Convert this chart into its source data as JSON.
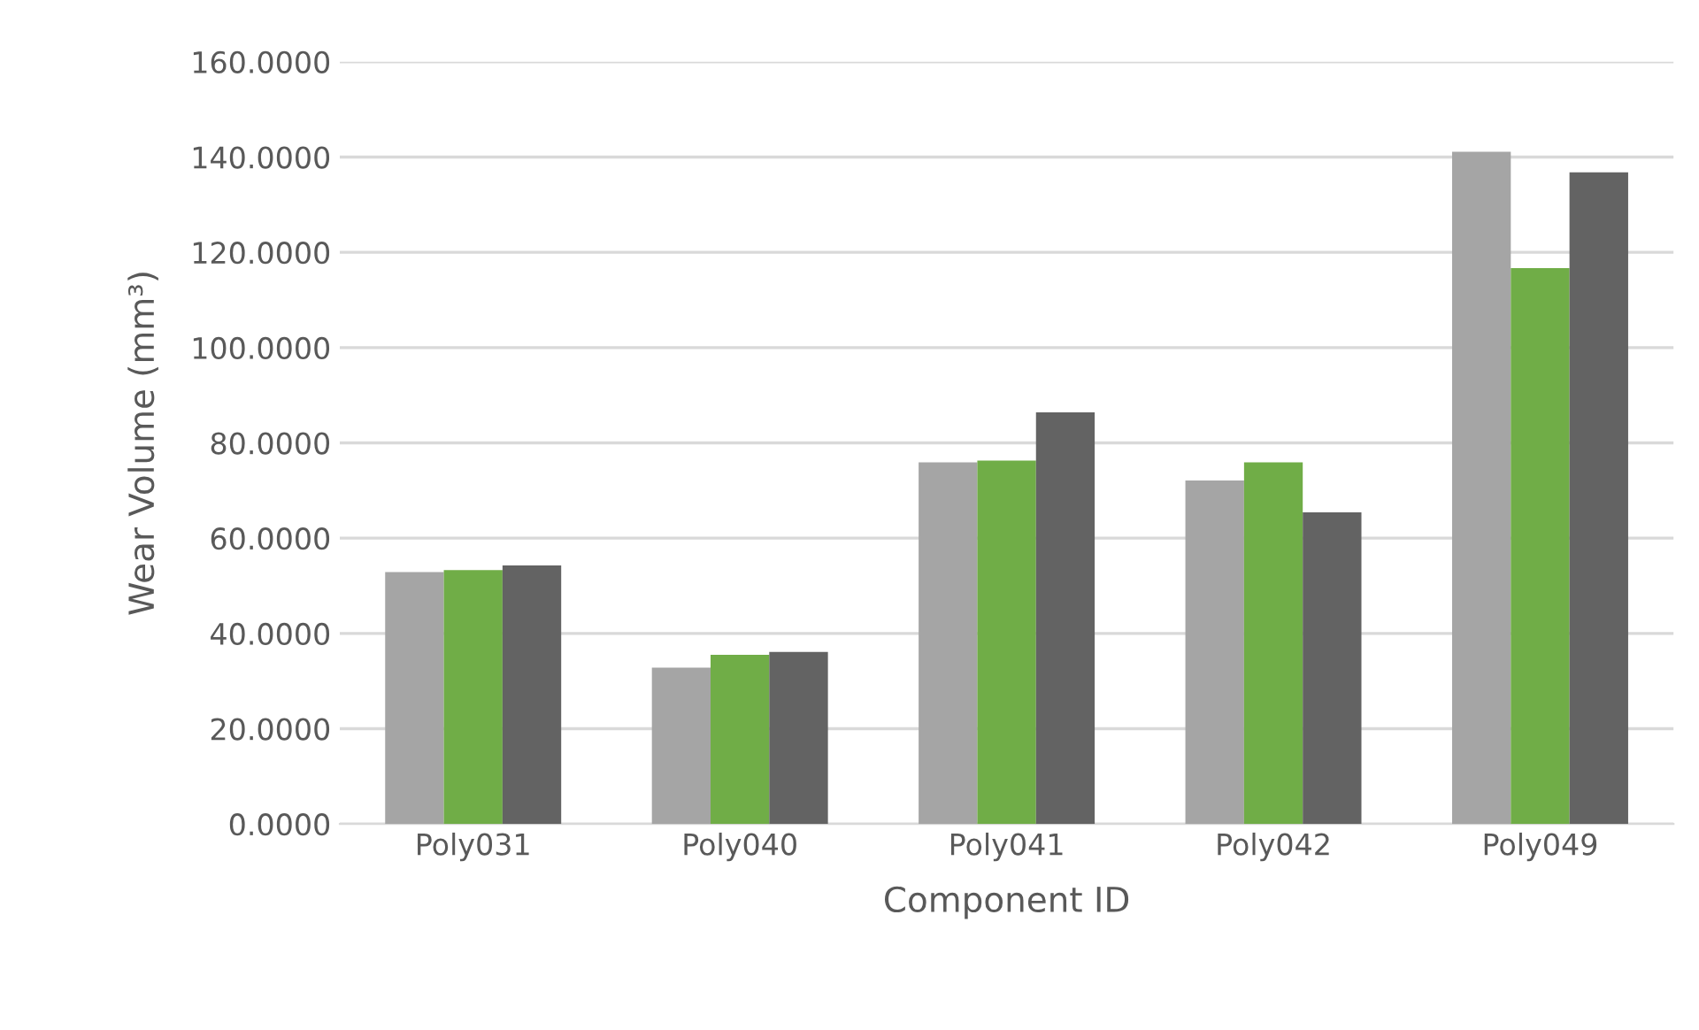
{
  "chart_data": {
    "type": "bar",
    "xlabel": "Component ID",
    "ylabel": "Wear Volume (mm³)",
    "categories": [
      "Poly031",
      "Poly040",
      "Poly041",
      "Poly042",
      "Poly049"
    ],
    "series": [
      {
        "color": "#a5a5a5",
        "values": [
          52.9,
          32.8,
          75.9,
          72.1,
          141.1
        ]
      },
      {
        "color": "#70ad47",
        "values": [
          53.3,
          35.5,
          76.3,
          75.9,
          116.7
        ]
      },
      {
        "color": "#636363",
        "values": [
          54.3,
          36.1,
          86.4,
          65.4,
          136.8
        ]
      }
    ],
    "ylim": [
      0,
      160
    ],
    "yticks": [
      {
        "value": 0,
        "label": "0.0000"
      },
      {
        "value": 20,
        "label": "20.0000"
      },
      {
        "value": 40,
        "label": "40.0000"
      },
      {
        "value": 60,
        "label": "60.0000"
      },
      {
        "value": 80,
        "label": "80.0000"
      },
      {
        "value": 100,
        "label": "100.0000"
      },
      {
        "value": 120,
        "label": "120.0000"
      },
      {
        "value": 140,
        "label": "140.0000"
      },
      {
        "value": 160,
        "label": "160.0000"
      }
    ],
    "grid": "y",
    "legend": false
  }
}
